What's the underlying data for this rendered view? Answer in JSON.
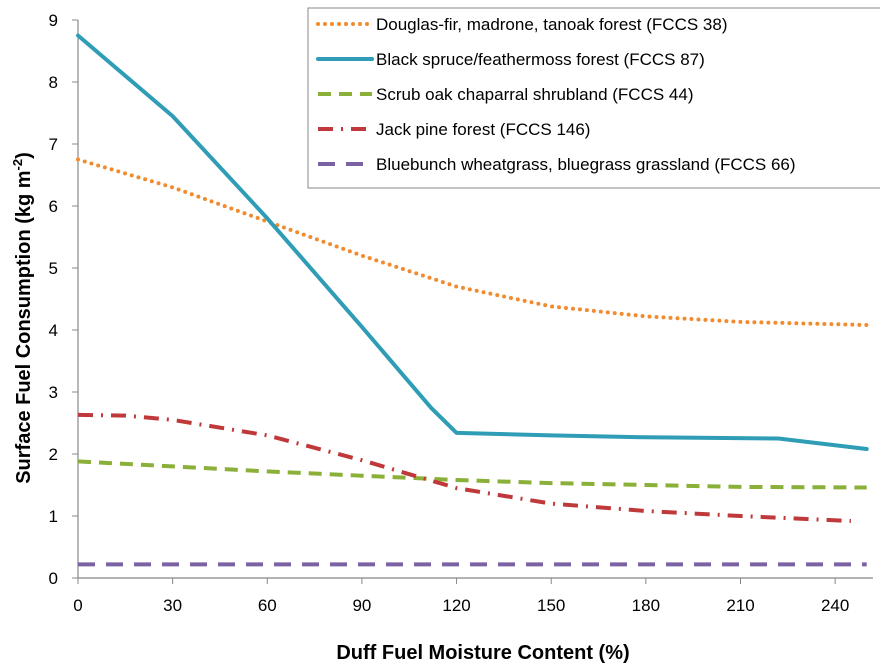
{
  "chart_data": {
    "type": "line",
    "xlabel": "Duff Fuel Moisture Content (%)",
    "ylabel_main": "Surface Fuel Consumption (kg m",
    "ylabel_sup": "-2",
    "ylabel_close": ")",
    "xlim": [
      0,
      252
    ],
    "ylim": [
      0,
      9
    ],
    "x_ticks": [
      0,
      30,
      60,
      90,
      120,
      150,
      180,
      210,
      240
    ],
    "y_ticks": [
      0,
      1,
      2,
      3,
      4,
      5,
      6,
      7,
      8,
      9
    ],
    "legend_position": "top-right",
    "series": [
      {
        "name": "Douglas-fir, madrone, tanoak forest (FCCS 38)",
        "color": "#F28A2E",
        "dash": "dotted",
        "x": [
          0,
          30,
          60,
          90,
          120,
          150,
          180,
          210,
          250
        ],
        "y": [
          6.75,
          6.3,
          5.75,
          5.2,
          4.7,
          4.38,
          4.22,
          4.13,
          4.08
        ]
      },
      {
        "name": "Black spruce/feathermoss forest (FCCS 87)",
        "color": "#2E9DB5",
        "dash": "solid",
        "x": [
          0,
          30,
          60,
          90,
          112,
          120,
          150,
          180,
          222,
          250
        ],
        "y": [
          8.75,
          7.45,
          5.8,
          4.05,
          2.74,
          2.34,
          2.3,
          2.27,
          2.25,
          2.08
        ]
      },
      {
        "name": "Scrub oak chaparral shrubland (FCCS 44)",
        "color": "#8AB03A",
        "dash": "dashed",
        "x": [
          0,
          30,
          60,
          90,
          120,
          150,
          180,
          210,
          250
        ],
        "y": [
          1.88,
          1.8,
          1.72,
          1.65,
          1.58,
          1.53,
          1.5,
          1.47,
          1.46
        ]
      },
      {
        "name": "Jack pine forest (FCCS 146)",
        "color": "#C0393A",
        "dash": "dashdot",
        "x": [
          0,
          15,
          30,
          60,
          90,
          120,
          150,
          180,
          210,
          245
        ],
        "y": [
          2.63,
          2.62,
          2.55,
          2.3,
          1.9,
          1.45,
          1.2,
          1.08,
          1.0,
          0.92
        ]
      },
      {
        "name": "Bluebunch wheatgrass, bluegrass grassland (FCCS 66)",
        "color": "#7B62A3",
        "dash": "longdash",
        "x": [
          0,
          250
        ],
        "y": [
          0.22,
          0.22
        ]
      }
    ]
  }
}
